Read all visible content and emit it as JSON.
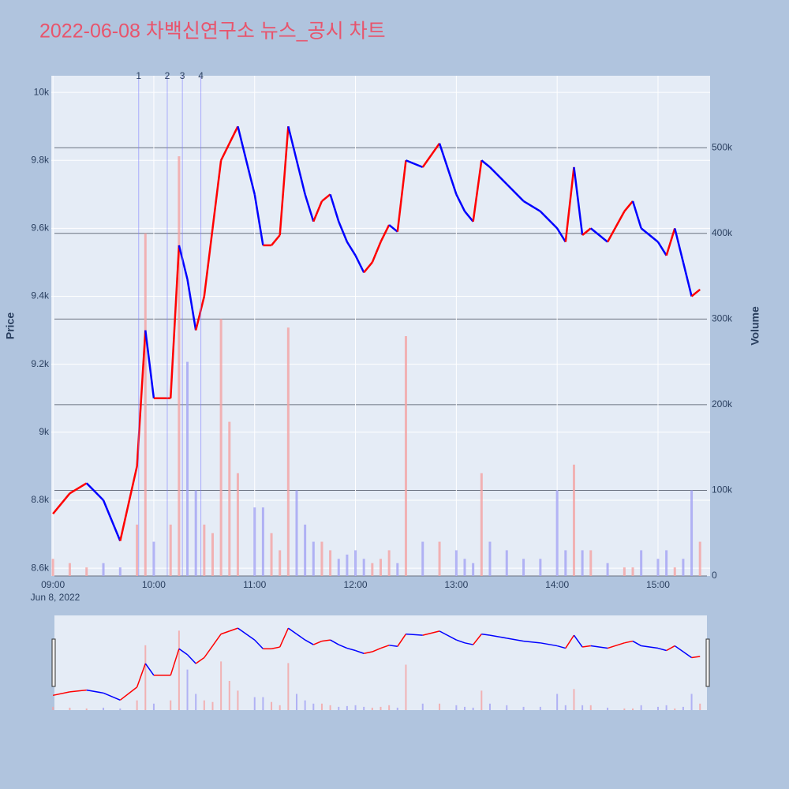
{
  "chart_data": {
    "type": "candlestick-volume",
    "title": "2022-06-08 차백신연구소 뉴스_공시 차트",
    "y_label": "Price",
    "y2_label": "Volume",
    "x": [
      "09:00",
      "09:10",
      "09:20",
      "09:30",
      "09:40",
      "09:50",
      "09:55",
      "10:00",
      "10:10",
      "10:15",
      "10:20",
      "10:25",
      "10:30",
      "10:35",
      "10:40",
      "10:45",
      "10:50",
      "11:00",
      "11:05",
      "11:10",
      "11:15",
      "11:20",
      "11:25",
      "11:30",
      "11:35",
      "11:40",
      "11:45",
      "11:50",
      "11:55",
      "12:00",
      "12:05",
      "12:10",
      "12:15",
      "12:20",
      "12:25",
      "12:30",
      "12:40",
      "12:50",
      "13:00",
      "13:05",
      "13:10",
      "13:15",
      "13:20",
      "13:30",
      "13:40",
      "13:50",
      "14:00",
      "14:05",
      "14:10",
      "14:15",
      "14:20",
      "14:30",
      "14:40",
      "14:45",
      "14:50",
      "15:00",
      "15:05",
      "15:10",
      "15:15",
      "15:20",
      "15:25"
    ],
    "series": [
      {
        "name": "Price",
        "up_color": "#ff0000",
        "down_color": "#0000ff",
        "values": [
          8760,
          8820,
          8850,
          8800,
          8680,
          8900,
          9300,
          9100,
          9100,
          9550,
          9450,
          9300,
          9400,
          9600,
          9800,
          9850,
          9900,
          9700,
          9550,
          9550,
          9580,
          9900,
          9800,
          9700,
          9620,
          9680,
          9700,
          9620,
          9560,
          9520,
          9470,
          9500,
          9560,
          9610,
          9590,
          9800,
          9780,
          9850,
          9700,
          9650,
          9620,
          9800,
          9780,
          9730,
          9680,
          9650,
          9600,
          9560,
          9780,
          9580,
          9600,
          9560,
          9650,
          9680,
          9600,
          9560,
          9520,
          9600,
          9500,
          9400,
          9420
        ]
      },
      {
        "name": "Volume",
        "axis": "y2",
        "up_color": "#f4a3a3",
        "down_color": "#a3a3f4",
        "values": [
          20000,
          15000,
          10000,
          15000,
          10000,
          60000,
          400000,
          40000,
          60000,
          490000,
          250000,
          100000,
          60000,
          50000,
          300000,
          180000,
          120000,
          80000,
          80000,
          50000,
          30000,
          290000,
          100000,
          60000,
          40000,
          40000,
          30000,
          20000,
          25000,
          30000,
          20000,
          15000,
          20000,
          30000,
          15000,
          280000,
          40000,
          40000,
          30000,
          20000,
          15000,
          120000,
          40000,
          30000,
          20000,
          20000,
          100000,
          30000,
          130000,
          30000,
          30000,
          15000,
          10000,
          10000,
          30000,
          20000,
          30000,
          10000,
          20000,
          100000,
          40000
        ]
      }
    ],
    "annotations": [
      {
        "x": "09:51",
        "label": "1"
      },
      {
        "x": "10:08",
        "label": "2"
      },
      {
        "x": "10:17",
        "label": "3"
      },
      {
        "x": "10:28",
        "label": "4"
      }
    ],
    "xlim": [
      "08:59",
      "15:31"
    ],
    "xticks": [
      "09:00",
      "10:00",
      "11:00",
      "12:00",
      "13:00",
      "14:00",
      "15:00"
    ],
    "x_date_label": "Jun 8, 2022",
    "ylim": [
      8577,
      10049
    ],
    "yticks": [
      {
        "value": 8600,
        "label": "8.6k"
      },
      {
        "value": 8800,
        "label": "8.8k"
      },
      {
        "value": 9000,
        "label": "9k"
      },
      {
        "value": 9200,
        "label": "9.2k"
      },
      {
        "value": 9400,
        "label": "9.4k"
      },
      {
        "value": 9600,
        "label": "9.6k"
      },
      {
        "value": 9800,
        "label": "9.8k"
      },
      {
        "value": 10000,
        "label": "10k"
      }
    ],
    "y2lim": [
      0,
      584000
    ],
    "y2ticks": [
      0,
      {
        "value": 100000,
        "label": "100k"
      },
      {
        "value": 200000,
        "label": "200k"
      },
      {
        "value": 300000,
        "label": "300k"
      },
      {
        "value": 400000,
        "label": "400k"
      },
      {
        "value": 500000,
        "label": "500k"
      }
    ],
    "grid": true,
    "range_slider": true
  }
}
